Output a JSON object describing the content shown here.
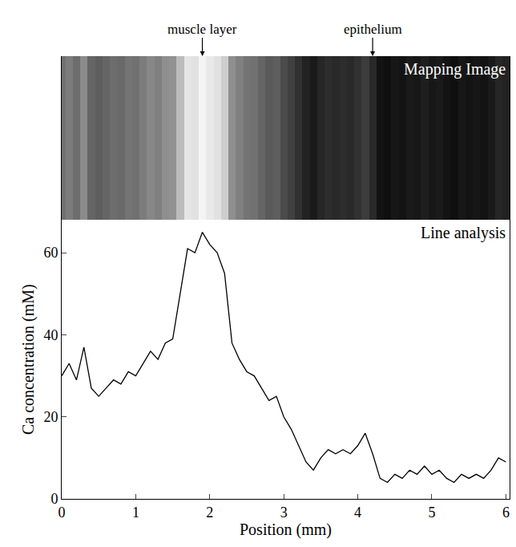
{
  "chart_data": {
    "type": "line",
    "x_label": "Position (mm)",
    "y_label": "Ca concentration (mM)",
    "panel_labels": [
      "Mapping Image",
      "Line analysis"
    ],
    "annotations": [
      {
        "text": "muscle layer",
        "x": 1.9
      },
      {
        "text": "epithelium",
        "x": 4.2
      }
    ],
    "color": "#000000",
    "x": [
      0,
      0.1,
      0.2,
      0.3,
      0.4,
      0.5,
      0.6,
      0.7,
      0.8,
      0.9,
      1.0,
      1.1,
      1.2,
      1.3,
      1.4,
      1.5,
      1.6,
      1.7,
      1.8,
      1.9,
      2.0,
      2.1,
      2.2,
      2.3,
      2.4,
      2.5,
      2.6,
      2.7,
      2.8,
      2.9,
      3.0,
      3.1,
      3.2,
      3.3,
      3.4,
      3.5,
      3.6,
      3.7,
      3.8,
      3.9,
      4.0,
      4.1,
      4.2,
      4.3,
      4.4,
      4.5,
      4.6,
      4.7,
      4.8,
      4.9,
      5.0,
      5.1,
      5.2,
      5.3,
      5.4,
      5.5,
      5.6,
      5.7,
      5.8,
      5.9,
      6.0
    ],
    "values": [
      30,
      33,
      29,
      37,
      27,
      25,
      27,
      29,
      28,
      31,
      30,
      33,
      36,
      34,
      38,
      39,
      50,
      61,
      60,
      65,
      62,
      60,
      55,
      38,
      34,
      31,
      30,
      27,
      24,
      25,
      20,
      17,
      13,
      9,
      7,
      10,
      12,
      11,
      12,
      11,
      13,
      16,
      11,
      5,
      4,
      6,
      5,
      7,
      6,
      8,
      6,
      7,
      5,
      4,
      6,
      5,
      6,
      5,
      7,
      10,
      9
    ],
    "xlim": [
      0,
      6.05
    ],
    "xticks": [
      0,
      1,
      2,
      3,
      4,
      5,
      6
    ],
    "ylim": [
      0,
      68
    ],
    "yticks": [
      0,
      20,
      40,
      60
    ],
    "grid": false
  }
}
